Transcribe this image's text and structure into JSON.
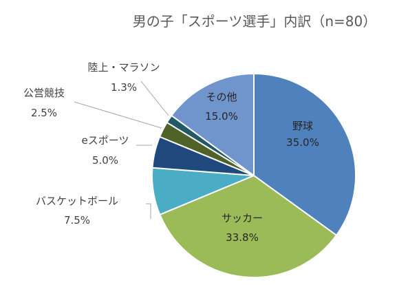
{
  "chart_data": {
    "type": "pie",
    "title": "男の子「スポーツ選手」内訳（n=80）",
    "categories": [
      "野球",
      "サッカー",
      "バスケットボール",
      "eスポーツ",
      "公営競技",
      "陸上・マラソン",
      "その他"
    ],
    "values": [
      35.0,
      33.8,
      7.5,
      5.0,
      2.5,
      1.3,
      15.0
    ],
    "value_labels": [
      "35.0%",
      "33.8%",
      "7.5%",
      "5.0%",
      "2.5%",
      "1.3%",
      "15.0%"
    ],
    "colors": [
      "#4f81bd",
      "#9bbb59",
      "#4bacc6",
      "#1f497d",
      "#4f6228",
      "#215967",
      "#7094cc"
    ],
    "label_placement": [
      "inside",
      "inside",
      "outside",
      "outside",
      "outside",
      "outside",
      "inside"
    ],
    "legend": "none"
  }
}
